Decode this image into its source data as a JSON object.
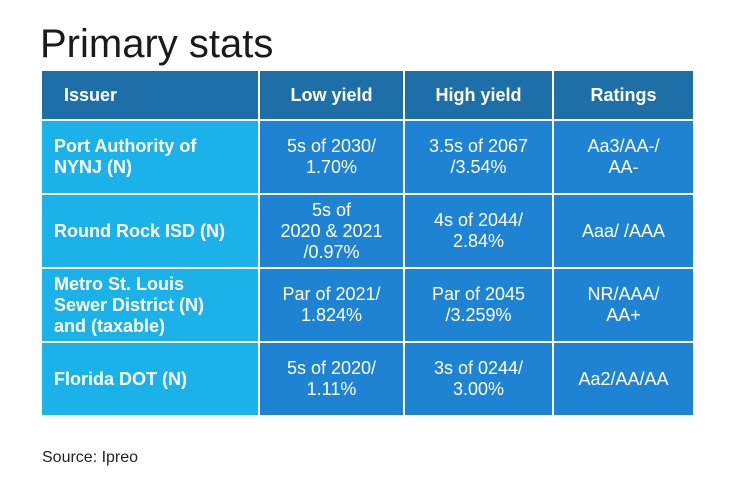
{
  "title": "Primary stats",
  "chart_data": {
    "type": "table",
    "columns": [
      "Issuer",
      "Low yield",
      "High yield",
      "Ratings"
    ],
    "rows": [
      [
        "Port Authority of\nNYNJ (N)",
        "5s of 2030/\n1.70%",
        "3.5s of 2067\n/3.54%",
        "Aa3/AA-/\nAA-"
      ],
      [
        "Round Rock ISD (N)",
        "5s of\n2020 & 2021\n/0.97%",
        "4s of 2044/\n2.84%",
        "Aaa/ /AAA"
      ],
      [
        "Metro St. Louis\nSewer District (N)\nand (taxable)",
        "Par of 2021/\n1.824%",
        "Par of 2045\n/3.259%",
        "NR/AAA/\nAA+"
      ],
      [
        "Florida DOT (N)",
        "5s of 2020/\n1.11%",
        "3s of 0244/\n3.00%",
        "Aa2/AA/AA"
      ]
    ],
    "colors": {
      "header": "#1e6fa8",
      "issuer_column": "#1ab2e8",
      "value_cells": "#1f83d3"
    }
  },
  "source": "Source: Ipreo"
}
